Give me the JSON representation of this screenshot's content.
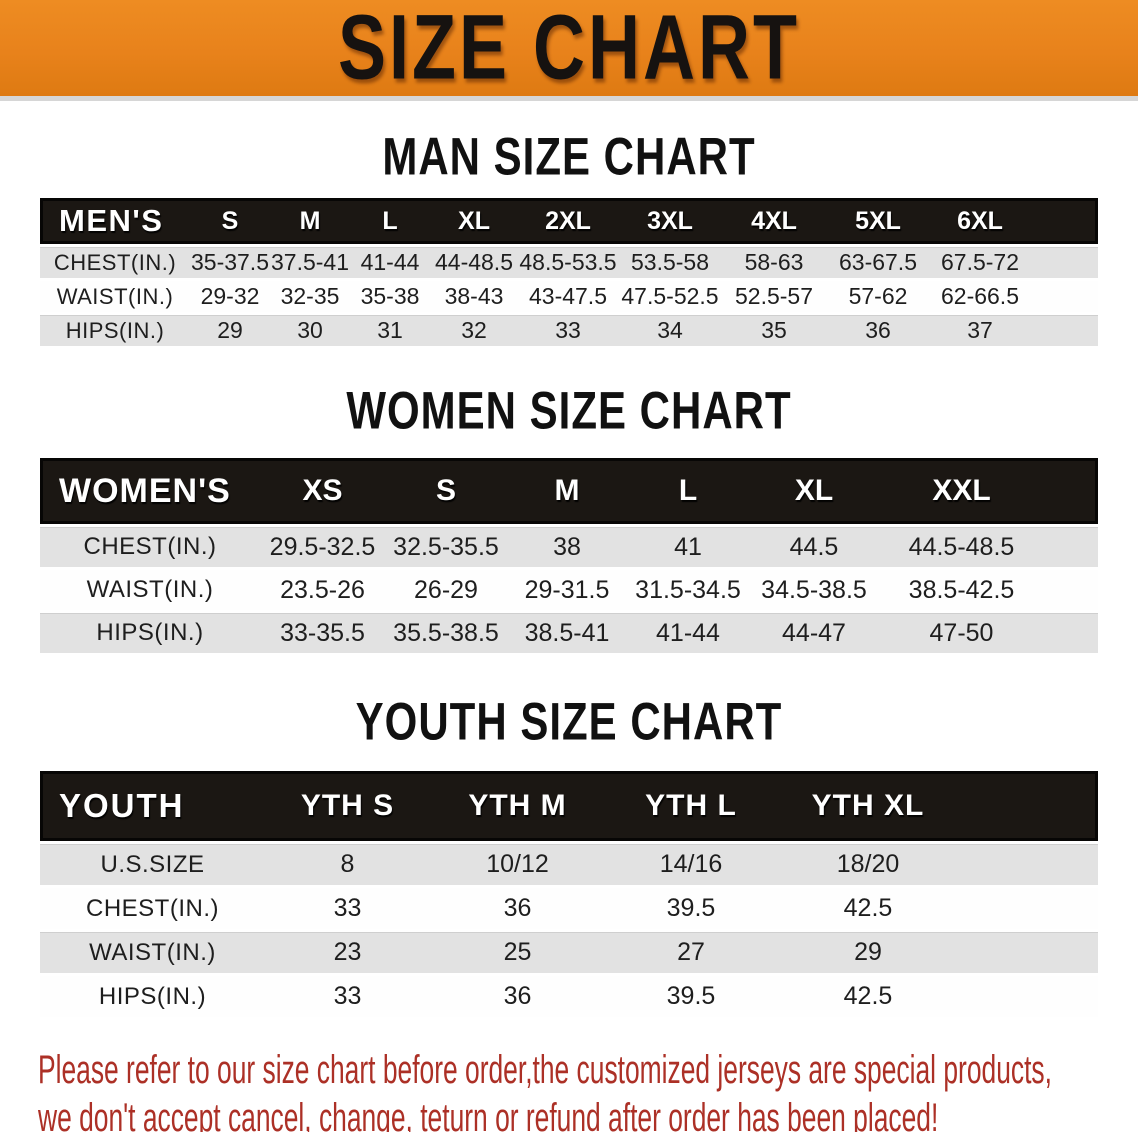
{
  "banner": {
    "title": "SIZE CHART"
  },
  "sections": [
    {
      "id": "men",
      "heading": "MAN SIZE CHART",
      "header_label": "MEN'S",
      "columns": [
        "S",
        "M",
        "L",
        "XL",
        "2XL",
        "3XL",
        "4XL",
        "5XL",
        "6XL"
      ],
      "rows": [
        {
          "label": "CHEST(IN.)",
          "values": [
            "35-37.5",
            "37.5-41",
            "41-44",
            "44-48.5",
            "48.5-53.5",
            "53.5-58",
            "58-63",
            "63-67.5",
            "67.5-72"
          ]
        },
        {
          "label": "WAIST(IN.)",
          "values": [
            "29-32",
            "32-35",
            "35-38",
            "38-43",
            "43-47.5",
            "47.5-52.5",
            "52.5-57",
            "57-62",
            "62-66.5"
          ]
        },
        {
          "label": "HIPS(IN.)",
          "values": [
            "29",
            "30",
            "31",
            "32",
            "33",
            "34",
            "35",
            "36",
            "37"
          ]
        }
      ]
    },
    {
      "id": "women",
      "heading": "WOMEN SIZE CHART",
      "header_label": "WOMEN'S",
      "columns": [
        "XS",
        "S",
        "M",
        "L",
        "XL",
        "XXL"
      ],
      "rows": [
        {
          "label": "CHEST(IN.)",
          "values": [
            "29.5-32.5",
            "32.5-35.5",
            "38",
            "41",
            "44.5",
            "44.5-48.5"
          ]
        },
        {
          "label": "WAIST(IN.)",
          "values": [
            "23.5-26",
            "26-29",
            "29-31.5",
            "31.5-34.5",
            "34.5-38.5",
            "38.5-42.5"
          ]
        },
        {
          "label": "HIPS(IN.)",
          "values": [
            "33-35.5",
            "35.5-38.5",
            "38.5-41",
            "41-44",
            "44-47",
            "47-50"
          ]
        }
      ]
    },
    {
      "id": "youth",
      "heading": "YOUTH SIZE CHART",
      "header_label": "YOUTH",
      "columns": [
        "YTH S",
        "YTH M",
        "YTH L",
        "YTH XL"
      ],
      "rows": [
        {
          "label": "U.S.SIZE",
          "values": [
            "8",
            "10/12",
            "14/16",
            "18/20"
          ]
        },
        {
          "label": "CHEST(IN.)",
          "values": [
            "33",
            "36",
            "39.5",
            "42.5"
          ]
        },
        {
          "label": "WAIST(IN.)",
          "values": [
            "23",
            "25",
            "27",
            "29"
          ]
        },
        {
          "label": "HIPS(IN.)",
          "values": [
            "33",
            "36",
            "39.5",
            "42.5"
          ]
        }
      ]
    }
  ],
  "note": {
    "line1": "Please refer to our size chart before order,the customized jerseys are special products,",
    "line2": "we don't accept cancel, change, teturn or refund after order has been placed!"
  },
  "colors": {
    "banner_orange": "#e8821b",
    "header_bar_black": "#1b1713",
    "row_gray": "#e2e2e2",
    "row_white": "#fefefe",
    "note_red": "#ac3026",
    "heading_black": "#111111"
  }
}
